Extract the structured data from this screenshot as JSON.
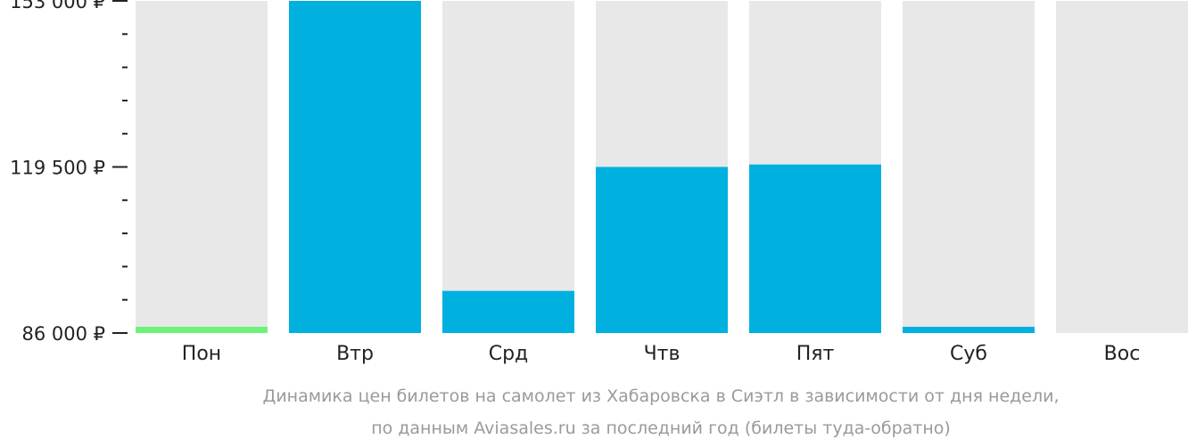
{
  "chart_data": {
    "type": "bar",
    "categories": [
      "Пон",
      "Втр",
      "Срд",
      "Чтв",
      "Пят",
      "Суб",
      "Вос"
    ],
    "values": [
      86000,
      153000,
      94500,
      119500,
      120000,
      86000,
      null
    ],
    "ylim": [
      86000,
      153000
    ],
    "yticks": [
      86000,
      119500,
      153000
    ],
    "ytick_labels": [
      "86 000 ₽",
      "119 500 ₽",
      "153 000 ₽"
    ],
    "minor_ticks_per_interval": 4,
    "grid": false,
    "caption_lines": [
      "Динамика цен билетов на самолет из Хабаровска в Сиэтл в зависимости от дня недели,",
      "по данным Aviasales.ru за последний год (билеты туда-обратно)"
    ],
    "colors": {
      "bar": "#00b0de",
      "min_bar": "#6ef27a",
      "background_bar": "#e8e8e8",
      "axis": "#222222",
      "caption": "#9a9a9a"
    },
    "highlight_min_index": 0
  }
}
